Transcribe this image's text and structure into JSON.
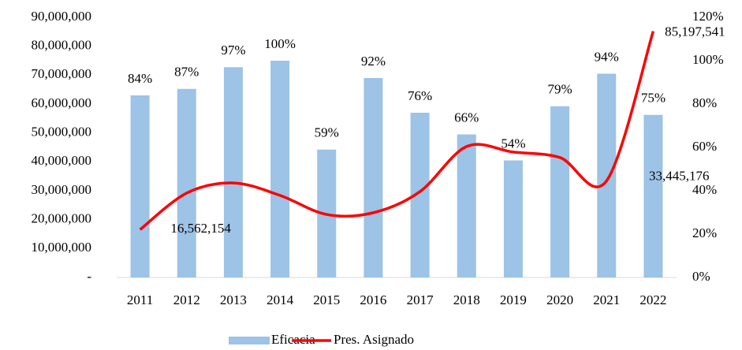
{
  "chart_data": {
    "type": "bar_line",
    "categories": [
      "2011",
      "2012",
      "2013",
      "2014",
      "2015",
      "2016",
      "2017",
      "2018",
      "2019",
      "2020",
      "2021",
      "2022"
    ],
    "series": [
      {
        "name": "Eficacia",
        "type": "bar",
        "axis": "y2",
        "color": "#9dc3e6",
        "values": [
          84,
          87,
          97,
          100,
          59,
          92,
          76,
          66,
          54,
          79,
          94,
          75
        ],
        "value_labels": [
          "84%",
          "87%",
          "97%",
          "100%",
          "59%",
          "92%",
          "76%",
          "66%",
          "54%",
          "79%",
          "94%",
          "75%"
        ]
      },
      {
        "name": "Pres. Asignado",
        "type": "line",
        "axis": "y",
        "color": "#ff0000",
        "values": [
          16562154,
          29200000,
          32700000,
          28400000,
          21800000,
          22400000,
          29700000,
          45300000,
          43400000,
          41500000,
          33445176,
          85197541
        ],
        "value_labels": [
          "16,562,154",
          null,
          null,
          null,
          null,
          null,
          null,
          null,
          null,
          null,
          "33,445,176",
          "85,197,541"
        ]
      }
    ],
    "ylim": [
      0,
      90000000
    ],
    "yticks": [
      {
        "value": 0,
        "label": "-"
      },
      {
        "value": 10000000,
        "label": "10,000,000"
      },
      {
        "value": 20000000,
        "label": "20,000,000"
      },
      {
        "value": 30000000,
        "label": "30,000,000"
      },
      {
        "value": 40000000,
        "label": "40,000,000"
      },
      {
        "value": 50000000,
        "label": "50,000,000"
      },
      {
        "value": 60000000,
        "label": "60,000,000"
      },
      {
        "value": 70000000,
        "label": "70,000,000"
      },
      {
        "value": 80000000,
        "label": "80,000,000"
      },
      {
        "value": 90000000,
        "label": "90,000,000"
      }
    ],
    "y2lim": [
      0,
      120
    ],
    "y2ticks": [
      {
        "value": 0,
        "label": "0%"
      },
      {
        "value": 20,
        "label": "20%"
      },
      {
        "value": 40,
        "label": "40%"
      },
      {
        "value": 60,
        "label": "60%"
      },
      {
        "value": 80,
        "label": "80%"
      },
      {
        "value": 100,
        "label": "100%"
      },
      {
        "value": 120,
        "label": "120%"
      }
    ],
    "legend": "bottom"
  }
}
